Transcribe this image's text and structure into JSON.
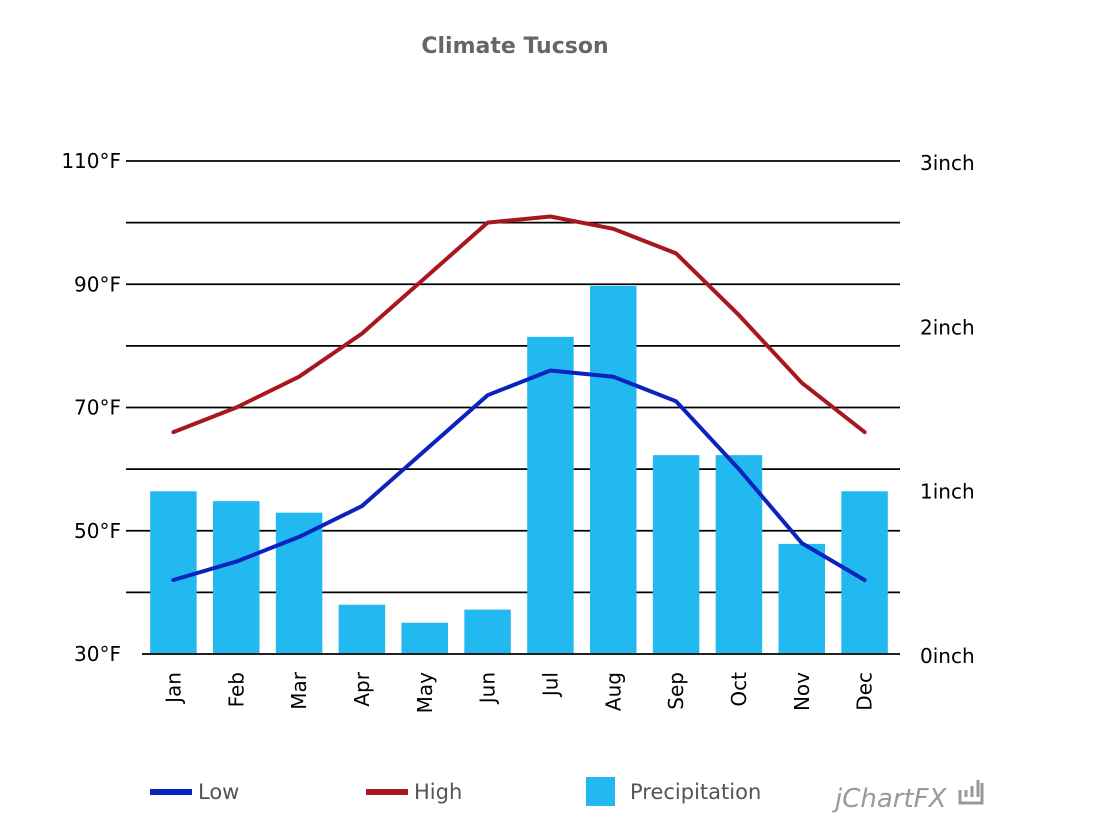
{
  "chart_data": {
    "type": "bar",
    "title": "Climate Tucson",
    "categories": [
      "Jan",
      "Feb",
      "Mar",
      "Apr",
      "May",
      "Jun",
      "Jul",
      "Aug",
      "Sep",
      "Oct",
      "Nov",
      "Dec"
    ],
    "left_axis": {
      "ylim": [
        30,
        110
      ],
      "ticks": [
        110,
        90,
        70,
        50,
        30
      ],
      "tick_labels": [
        "110°F",
        "90°F",
        "70°F",
        "50°F",
        "30°F"
      ],
      "gridline_step": 10
    },
    "right_axis": {
      "ylim": [
        0,
        3
      ],
      "ticks": [
        3,
        2,
        1,
        0
      ],
      "tick_labels": [
        "3inch",
        "2inch",
        "1inch",
        "0inch"
      ]
    },
    "series": [
      {
        "name": "Precipitation",
        "type": "bar",
        "axis": "right",
        "color": "#22B8F0",
        "values": [
          0.99,
          0.93,
          0.86,
          0.3,
          0.19,
          0.27,
          1.93,
          2.24,
          1.21,
          1.21,
          0.67,
          0.99
        ]
      },
      {
        "name": "Low",
        "type": "line",
        "axis": "left",
        "color": "#0A23BE",
        "values": [
          42,
          45,
          49,
          54,
          63,
          72,
          76,
          75,
          71,
          60,
          48,
          42
        ]
      },
      {
        "name": "High",
        "type": "line",
        "axis": "left",
        "color": "#A8161E",
        "values": [
          66,
          70,
          75,
          82,
          91,
          100,
          101,
          99,
          95,
          85,
          74,
          66
        ]
      }
    ],
    "grid": true,
    "legend_position": "bottom"
  },
  "legend": [
    {
      "label": "Low",
      "color": "#0A23BE",
      "kind": "line"
    },
    {
      "label": "High",
      "color": "#A8161E",
      "kind": "line"
    },
    {
      "label": "Precipitation",
      "color": "#22B8F0",
      "kind": "box"
    }
  ],
  "branding": {
    "text": "jChartFX"
  }
}
